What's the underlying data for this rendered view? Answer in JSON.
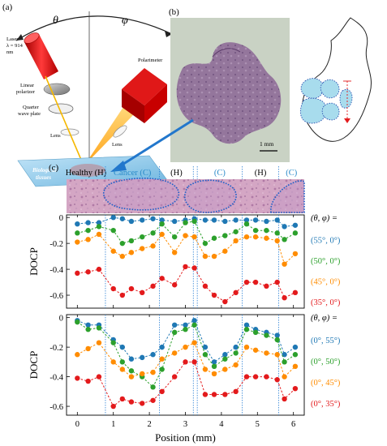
{
  "panels": {
    "a": {
      "label": "(a)",
      "theta": "θ",
      "phi": "φ",
      "laser": [
        "Laser",
        "λ = 914",
        "nm"
      ],
      "linear_polarizer": [
        "Linear",
        "polarizer"
      ],
      "quarter_wave_plate": [
        "Quarter",
        "wave plate"
      ],
      "lens_left": "Lens",
      "lens_right": "Lens",
      "polarimeter": "Polarimeter",
      "tissue": [
        "Biological",
        "tissues"
      ]
    },
    "b": {
      "label": "(b)",
      "scale_bar": "1 mm"
    },
    "c": {
      "label": "(c)",
      "regions": [
        {
          "label": "Healthy (H)",
          "color": "#000000"
        },
        {
          "label": "Cancer (C)",
          "color": "#2a8bc9"
        },
        {
          "label": "(H)",
          "color": "#000000"
        },
        {
          "label": "(C)",
          "color": "#2a8bc9"
        },
        {
          "label": "(H)",
          "color": "#000000"
        },
        {
          "label": "(C)",
          "color": "#2a8bc9"
        }
      ]
    }
  },
  "colors": {
    "blue": "#1f78b4",
    "green": "#2ca02c",
    "orange": "#ff8c00",
    "red": "#e31a1c",
    "region_line": "#2a7fd4"
  },
  "chart_data": [
    {
      "type": "line",
      "ylabel": "DOCP",
      "xlabel": "",
      "xlim": [
        -0.3,
        6.3
      ],
      "ylim": [
        -0.7,
        0.02
      ],
      "x_ticks": [
        0,
        1,
        2,
        3,
        4,
        5,
        6
      ],
      "y_ticks": [
        0,
        -0.2,
        -0.4,
        -0.6
      ],
      "y_tick_labels": [
        "0",
        "-0.2",
        "-0.4",
        "-0.6"
      ],
      "boundaries": [
        0.78,
        2.28,
        3.22,
        3.33,
        4.58,
        5.59
      ],
      "legend_header": "(θ, φ) =",
      "series": [
        {
          "name": "(55°, 0°)",
          "color": "#1f78b4",
          "x": [
            0,
            0.3,
            0.6,
            1.0,
            1.25,
            1.5,
            1.8,
            2.1,
            2.35,
            2.7,
            3.0,
            3.25,
            3.55,
            3.8,
            4.1,
            4.4,
            4.7,
            4.95,
            5.25,
            5.55,
            5.75,
            6.05
          ],
          "y": [
            -0.05,
            -0.04,
            -0.04,
            0.0,
            -0.01,
            -0.03,
            -0.02,
            -0.01,
            -0.02,
            -0.03,
            -0.02,
            -0.01,
            -0.02,
            -0.02,
            -0.03,
            -0.02,
            -0.02,
            -0.02,
            -0.03,
            -0.02,
            -0.07,
            -0.06
          ]
        },
        {
          "name": "(50°, 0°)",
          "color": "#2ca02c",
          "x": [
            0,
            0.3,
            0.6,
            1.0,
            1.25,
            1.5,
            1.8,
            2.1,
            2.35,
            2.7,
            3.0,
            3.25,
            3.55,
            3.8,
            4.1,
            4.4,
            4.7,
            4.95,
            5.25,
            5.55,
            5.75,
            6.05
          ],
          "y": [
            -0.12,
            -0.1,
            -0.07,
            -0.1,
            -0.2,
            -0.18,
            -0.15,
            -0.12,
            -0.05,
            -0.15,
            -0.04,
            -0.03,
            -0.2,
            -0.16,
            -0.14,
            -0.11,
            -0.05,
            -0.1,
            -0.1,
            -0.12,
            -0.17,
            -0.12
          ]
        },
        {
          "name": "(45°, 0°)",
          "color": "#ff8c00",
          "x": [
            0,
            0.3,
            0.6,
            1.0,
            1.25,
            1.5,
            1.8,
            2.1,
            2.35,
            2.7,
            3.0,
            3.25,
            3.55,
            3.8,
            4.1,
            4.4,
            4.7,
            4.95,
            5.25,
            5.55,
            5.75,
            6.05
          ],
          "y": [
            -0.19,
            -0.17,
            -0.13,
            -0.26,
            -0.3,
            -0.27,
            -0.24,
            -0.22,
            -0.13,
            -0.27,
            -0.14,
            -0.15,
            -0.3,
            -0.3,
            -0.26,
            -0.18,
            -0.15,
            -0.15,
            -0.16,
            -0.18,
            -0.36,
            -0.28
          ]
        },
        {
          "name": "(35°, 0°)",
          "color": "#e31a1c",
          "x": [
            0,
            0.3,
            0.6,
            1.0,
            1.25,
            1.5,
            1.8,
            2.1,
            2.35,
            2.7,
            3.0,
            3.25,
            3.55,
            3.8,
            4.1,
            4.4,
            4.7,
            4.95,
            5.25,
            5.55,
            5.75,
            6.05
          ],
          "y": [
            -0.43,
            -0.42,
            -0.4,
            -0.55,
            -0.6,
            -0.55,
            -0.58,
            -0.53,
            -0.47,
            -0.52,
            -0.38,
            -0.39,
            -0.53,
            -0.6,
            -0.65,
            -0.58,
            -0.5,
            -0.5,
            -0.53,
            -0.5,
            -0.62,
            -0.58
          ]
        }
      ]
    },
    {
      "type": "line",
      "ylabel": "DOCP",
      "xlabel": "Position (mm)",
      "xlim": [
        -0.3,
        6.3
      ],
      "ylim": [
        -0.66,
        0.02
      ],
      "x_ticks": [
        0,
        1,
        2,
        3,
        4,
        5,
        6
      ],
      "x_tick_labels": [
        "0",
        "1",
        "2",
        "3",
        "4",
        "5",
        "6"
      ],
      "y_ticks": [
        0,
        -0.2,
        -0.4,
        -0.6
      ],
      "y_tick_labels": [
        "0",
        "-0.2",
        "-0.4",
        "-0.6"
      ],
      "boundaries": [
        0.78,
        2.28,
        3.22,
        3.33,
        4.58,
        5.59
      ],
      "legend_header": "(θ, φ) =",
      "series": [
        {
          "name": "(0°, 55°)",
          "color": "#1f78b4",
          "x": [
            0,
            0.3,
            0.6,
            1.0,
            1.25,
            1.5,
            1.8,
            2.1,
            2.35,
            2.7,
            3.0,
            3.25,
            3.55,
            3.8,
            4.1,
            4.4,
            4.7,
            4.95,
            5.25,
            5.55,
            5.75,
            6.05
          ],
          "y": [
            -0.02,
            -0.05,
            -0.05,
            -0.15,
            -0.2,
            -0.28,
            -0.27,
            -0.25,
            -0.2,
            -0.05,
            -0.05,
            -0.02,
            -0.2,
            -0.3,
            -0.25,
            -0.2,
            -0.05,
            -0.08,
            -0.1,
            -0.12,
            -0.25,
            -0.2
          ]
        },
        {
          "name": "(0°, 50°)",
          "color": "#2ca02c",
          "x": [
            0,
            0.3,
            0.6,
            1.0,
            1.25,
            1.5,
            1.8,
            2.1,
            2.35,
            2.7,
            3.0,
            3.25,
            3.55,
            3.8,
            4.1,
            4.4,
            4.7,
            4.95,
            5.25,
            5.55,
            5.75,
            6.05
          ],
          "y": [
            -0.03,
            -0.08,
            -0.07,
            -0.17,
            -0.3,
            -0.36,
            -0.4,
            -0.47,
            -0.35,
            -0.1,
            -0.08,
            -0.05,
            -0.25,
            -0.33,
            -0.28,
            -0.24,
            -0.08,
            -0.1,
            -0.12,
            -0.15,
            -0.3,
            -0.25
          ]
        },
        {
          "name": "(0°, 45°)",
          "color": "#ff8c00",
          "x": [
            0,
            0.3,
            0.6,
            1.0,
            1.25,
            1.5,
            1.8,
            2.1,
            2.35,
            2.7,
            3.0,
            3.25,
            3.55,
            3.8,
            4.1,
            4.4,
            4.7,
            4.95,
            5.25,
            5.55,
            5.75,
            6.05
          ],
          "y": [
            -0.25,
            -0.21,
            -0.17,
            -0.3,
            -0.35,
            -0.4,
            -0.38,
            -0.37,
            -0.28,
            -0.24,
            -0.2,
            -0.17,
            -0.35,
            -0.38,
            -0.35,
            -0.32,
            -0.2,
            -0.22,
            -0.24,
            -0.25,
            -0.4,
            -0.33
          ]
        },
        {
          "name": "(0°, 35°)",
          "color": "#e31a1c",
          "x": [
            0,
            0.3,
            0.6,
            1.0,
            1.25,
            1.5,
            1.8,
            2.1,
            2.35,
            2.7,
            3.0,
            3.25,
            3.55,
            3.8,
            4.1,
            4.4,
            4.7,
            4.95,
            5.25,
            5.55,
            5.75,
            6.05
          ],
          "y": [
            -0.41,
            -0.43,
            -0.4,
            -0.6,
            -0.55,
            -0.57,
            -0.58,
            -0.56,
            -0.5,
            -0.4,
            -0.3,
            -0.3,
            -0.52,
            -0.52,
            -0.52,
            -0.5,
            -0.4,
            -0.4,
            -0.4,
            -0.42,
            -0.55,
            -0.48
          ]
        }
      ]
    }
  ]
}
